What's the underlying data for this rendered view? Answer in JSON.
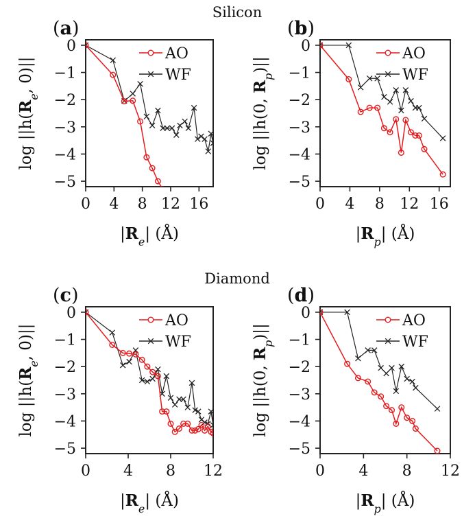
{
  "colors": {
    "AO": "#e41a1c",
    "WF": "#222222"
  },
  "groups": [
    {
      "title": "Silicon"
    },
    {
      "title": "Diamond"
    }
  ],
  "chart_data": [
    {
      "type": "line",
      "group": "Silicon",
      "panel_label": "(a)",
      "xlabel": "|R_e| (Å)",
      "ylabel": "log ||h(R_e, 0)||",
      "xlim": [
        0,
        18
      ],
      "ylim": [
        -5.2,
        0.2
      ],
      "xticks": [
        0,
        4,
        8,
        12,
        16
      ],
      "yticks": [
        0,
        -1,
        -2,
        -3,
        -4,
        -5
      ],
      "legend": "top-right",
      "series": [
        {
          "name": "AO",
          "marker": "circle",
          "x": [
            0,
            3.85,
            5.45,
            6.65,
            7.7,
            8.6,
            9.4,
            10.2,
            10.9
          ],
          "y": [
            0,
            -1.09,
            -2.06,
            -2.04,
            -2.8,
            -4.12,
            -4.52,
            -5.0,
            -5.3
          ]
        },
        {
          "name": "WF",
          "marker": "cross",
          "x": [
            0,
            3.85,
            5.45,
            6.65,
            7.7,
            8.6,
            9.4,
            10.2,
            10.9,
            11.5,
            12.2,
            12.8,
            13.3,
            14.0,
            14.5,
            15.3,
            15.8,
            16.3,
            16.8,
            17.3,
            17.7,
            18.0
          ],
          "y": [
            0,
            -0.55,
            -2.05,
            -1.78,
            -1.42,
            -2.62,
            -2.95,
            -2.4,
            -3.05,
            -3.05,
            -3.05,
            -3.3,
            -2.95,
            -2.8,
            -3.05,
            -2.3,
            -3.45,
            -3.35,
            -3.45,
            -3.9,
            -3.25,
            -3.6
          ]
        }
      ]
    },
    {
      "type": "line",
      "group": "Silicon",
      "panel_label": "(b)",
      "xlabel": "|R_p| (Å)",
      "ylabel": "log ||h(0, R_p)||",
      "xlim": [
        0,
        17.5
      ],
      "ylim": [
        -5.2,
        0.2
      ],
      "xticks": [
        0,
        4,
        8,
        12,
        16
      ],
      "yticks": [
        0,
        -1,
        -2,
        -3,
        -4,
        -5
      ],
      "legend": "top-right",
      "series": [
        {
          "name": "AO",
          "marker": "circle",
          "x": [
            0,
            3.85,
            5.45,
            6.65,
            7.7,
            8.6,
            9.4,
            10.2,
            10.9,
            11.5,
            12.2,
            12.8,
            13.3,
            14.0,
            16.5
          ],
          "y": [
            0,
            -1.25,
            -2.45,
            -2.3,
            -2.3,
            -3.05,
            -3.2,
            -2.72,
            -3.95,
            -2.75,
            -3.2,
            -3.32,
            -3.32,
            -3.82,
            -4.75
          ]
        },
        {
          "name": "WF",
          "marker": "cross",
          "x": [
            0,
            3.85,
            5.45,
            6.65,
            7.7,
            8.6,
            9.4,
            10.2,
            10.9,
            11.5,
            12.2,
            12.8,
            13.3,
            14.0,
            16.5
          ],
          "y": [
            0,
            0,
            -1.55,
            -1.22,
            -1.22,
            -1.9,
            -2.08,
            -1.65,
            -2.4,
            -1.65,
            -2.05,
            -2.3,
            -2.3,
            -2.7,
            -3.42
          ]
        }
      ]
    },
    {
      "type": "line",
      "group": "Diamond",
      "panel_label": "(c)",
      "xlabel": "|R_e| (Å)",
      "ylabel": "log ||h(R_e, 0)||",
      "xlim": [
        0,
        12
      ],
      "ylim": [
        -5.2,
        0.2
      ],
      "xticks": [
        0,
        4,
        8,
        12
      ],
      "yticks": [
        0,
        -1,
        -2,
        -3,
        -4,
        -5
      ],
      "legend": "top-right",
      "series": [
        {
          "name": "AO",
          "marker": "circle",
          "x": [
            0,
            2.5,
            3.5,
            4.1,
            4.7,
            5.3,
            5.8,
            6.3,
            6.8,
            7.2,
            7.6,
            8.0,
            8.4,
            8.8,
            9.2,
            9.6,
            10.0,
            10.3,
            10.6,
            10.9,
            11.2,
            11.5,
            11.8,
            12.0
          ],
          "y": [
            0,
            -1.2,
            -1.5,
            -1.52,
            -1.55,
            -1.75,
            -2.0,
            -2.2,
            -2.35,
            -3.65,
            -3.65,
            -4.1,
            -4.4,
            -4.28,
            -4.1,
            -4.1,
            -4.35,
            -4.35,
            -4.3,
            -4.15,
            -4.35,
            -4.2,
            -4.4,
            -4.45
          ]
        },
        {
          "name": "WF",
          "marker": "cross",
          "x": [
            0,
            2.5,
            3.5,
            4.1,
            4.7,
            5.3,
            5.8,
            6.3,
            6.8,
            7.2,
            7.6,
            8.0,
            8.4,
            8.8,
            9.2,
            9.6,
            10.0,
            10.3,
            10.6,
            10.9,
            11.2,
            11.5,
            11.8,
            12.0
          ],
          "y": [
            0,
            -0.75,
            -1.95,
            -1.82,
            -1.4,
            -2.5,
            -2.55,
            -2.45,
            -2.1,
            -3.0,
            -2.35,
            -3.15,
            -3.4,
            -3.2,
            -3.2,
            -3.5,
            -2.6,
            -3.6,
            -3.65,
            -3.95,
            -4.05,
            -4.1,
            -3.65,
            -4.15
          ]
        }
      ]
    },
    {
      "type": "line",
      "group": "Diamond",
      "panel_label": "(d)",
      "xlabel": "|R_p| (Å)",
      "ylabel": "log ||h(0, R_p)||",
      "xlim": [
        0,
        12
      ],
      "ylim": [
        -5.2,
        0.2
      ],
      "xticks": [
        0,
        4,
        8,
        12
      ],
      "yticks": [
        0,
        -1,
        -2,
        -3,
        -4,
        -5
      ],
      "legend": "top-right",
      "series": [
        {
          "name": "AO",
          "marker": "circle",
          "x": [
            0,
            2.5,
            3.5,
            4.4,
            5.0,
            5.6,
            6.1,
            6.6,
            7.0,
            7.5,
            8.0,
            8.5,
            8.8,
            10.8
          ],
          "y": [
            0,
            -1.9,
            -2.42,
            -2.55,
            -2.95,
            -3.1,
            -3.45,
            -3.6,
            -4.1,
            -3.5,
            -3.88,
            -4.0,
            -4.28,
            -5.1
          ]
        },
        {
          "name": "WF",
          "marker": "cross",
          "x": [
            0,
            2.5,
            3.5,
            4.4,
            5.0,
            5.6,
            6.1,
            6.6,
            7.0,
            7.5,
            8.0,
            8.5,
            8.8,
            10.8
          ],
          "y": [
            0,
            0,
            -1.7,
            -1.4,
            -1.4,
            -2.05,
            -2.25,
            -2.05,
            -2.9,
            -2.0,
            -2.45,
            -2.55,
            -2.78,
            -3.55
          ]
        }
      ]
    }
  ]
}
